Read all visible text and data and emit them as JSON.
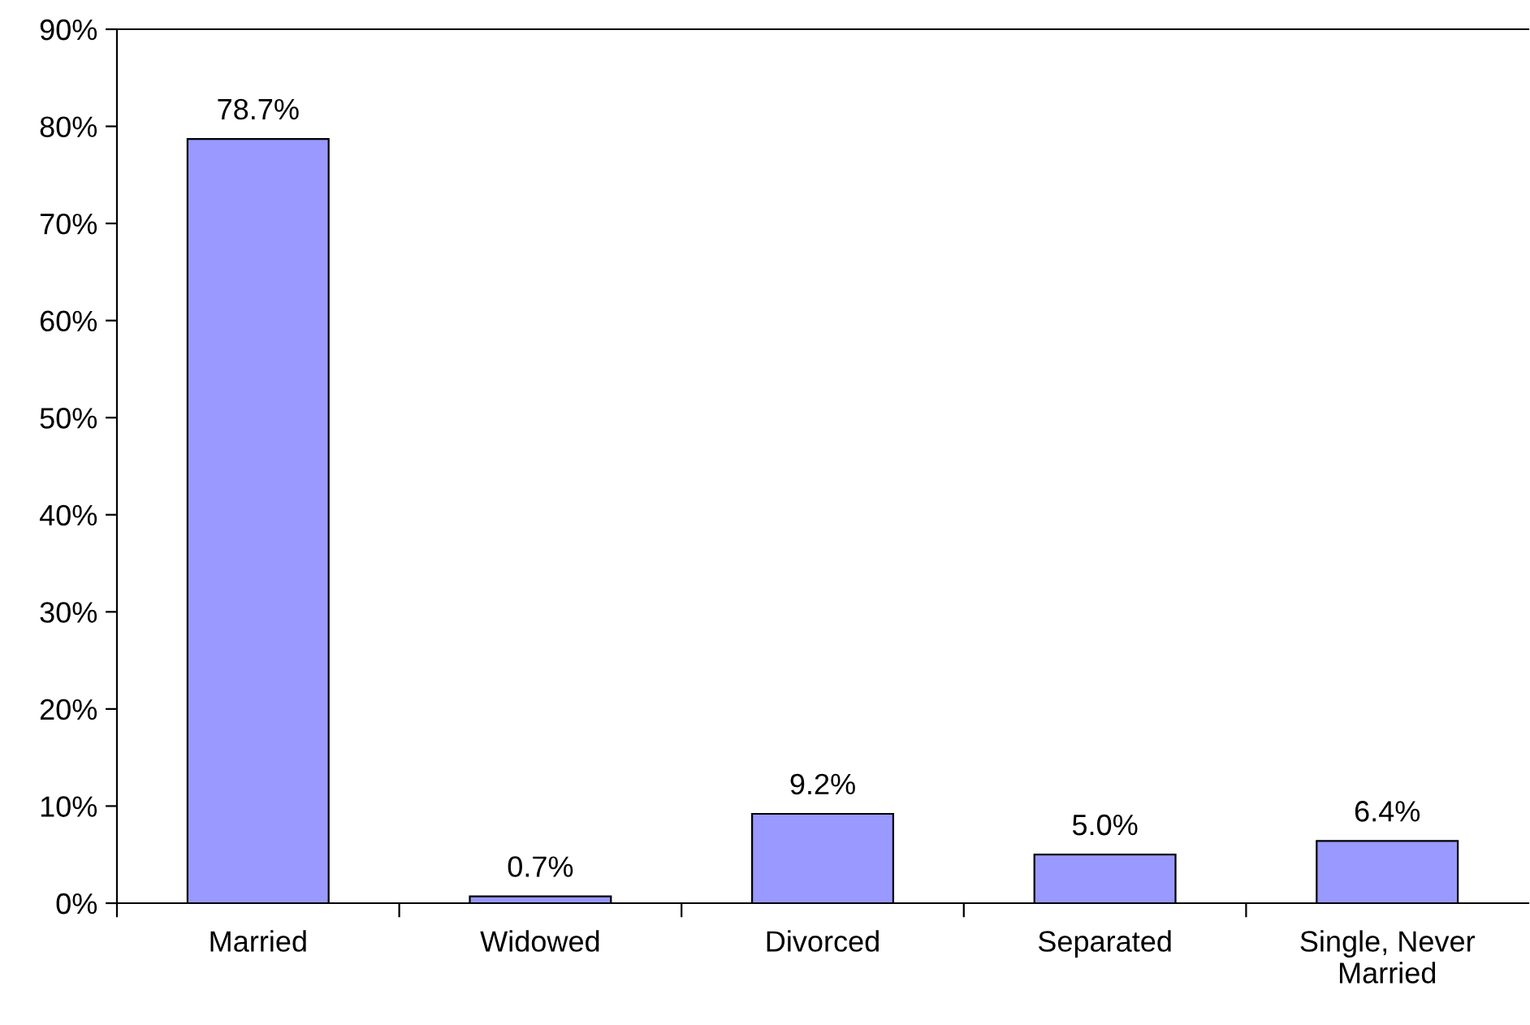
{
  "chart_data": {
    "type": "bar",
    "categories": [
      "Married",
      "Widowed",
      "Divorced",
      "Separated",
      "Single, Never\nMarried"
    ],
    "values": [
      78.7,
      0.7,
      9.2,
      5.0,
      6.4
    ],
    "value_labels": [
      "78.7%",
      "0.7%",
      "9.2%",
      "5.0%",
      "6.4%"
    ],
    "color": "#9999ff",
    "ylim": [
      0,
      90
    ],
    "yticks": [
      {
        "value": 0,
        "label": "0%"
      },
      {
        "value": 10,
        "label": "10%"
      },
      {
        "value": 20,
        "label": "20%"
      },
      {
        "value": 30,
        "label": "30%"
      },
      {
        "value": 40,
        "label": "40%"
      },
      {
        "value": 50,
        "label": "50%"
      },
      {
        "value": 60,
        "label": "60%"
      },
      {
        "value": 70,
        "label": "70%"
      },
      {
        "value": 80,
        "label": "80%"
      },
      {
        "value": 90,
        "label": "90%"
      }
    ],
    "grid": false
  }
}
